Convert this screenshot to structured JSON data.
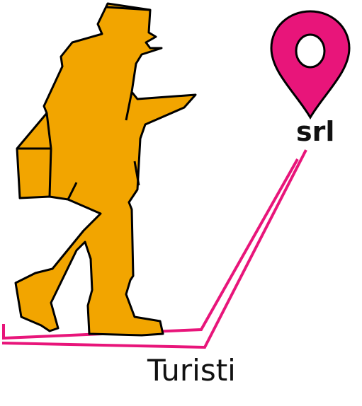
{
  "logo": {
    "word_top": "srl",
    "word_bottom": "Turisti"
  },
  "icons": {
    "hiker": "hiker-silhouette-icon",
    "pin": "map-pin-icon",
    "trail": "trail-path-lines"
  },
  "colors": {
    "hiker_fill": "#F2A500",
    "outline": "#000000",
    "accent": "#E8157A",
    "text": "#111111",
    "background": "#FFFFFF"
  }
}
